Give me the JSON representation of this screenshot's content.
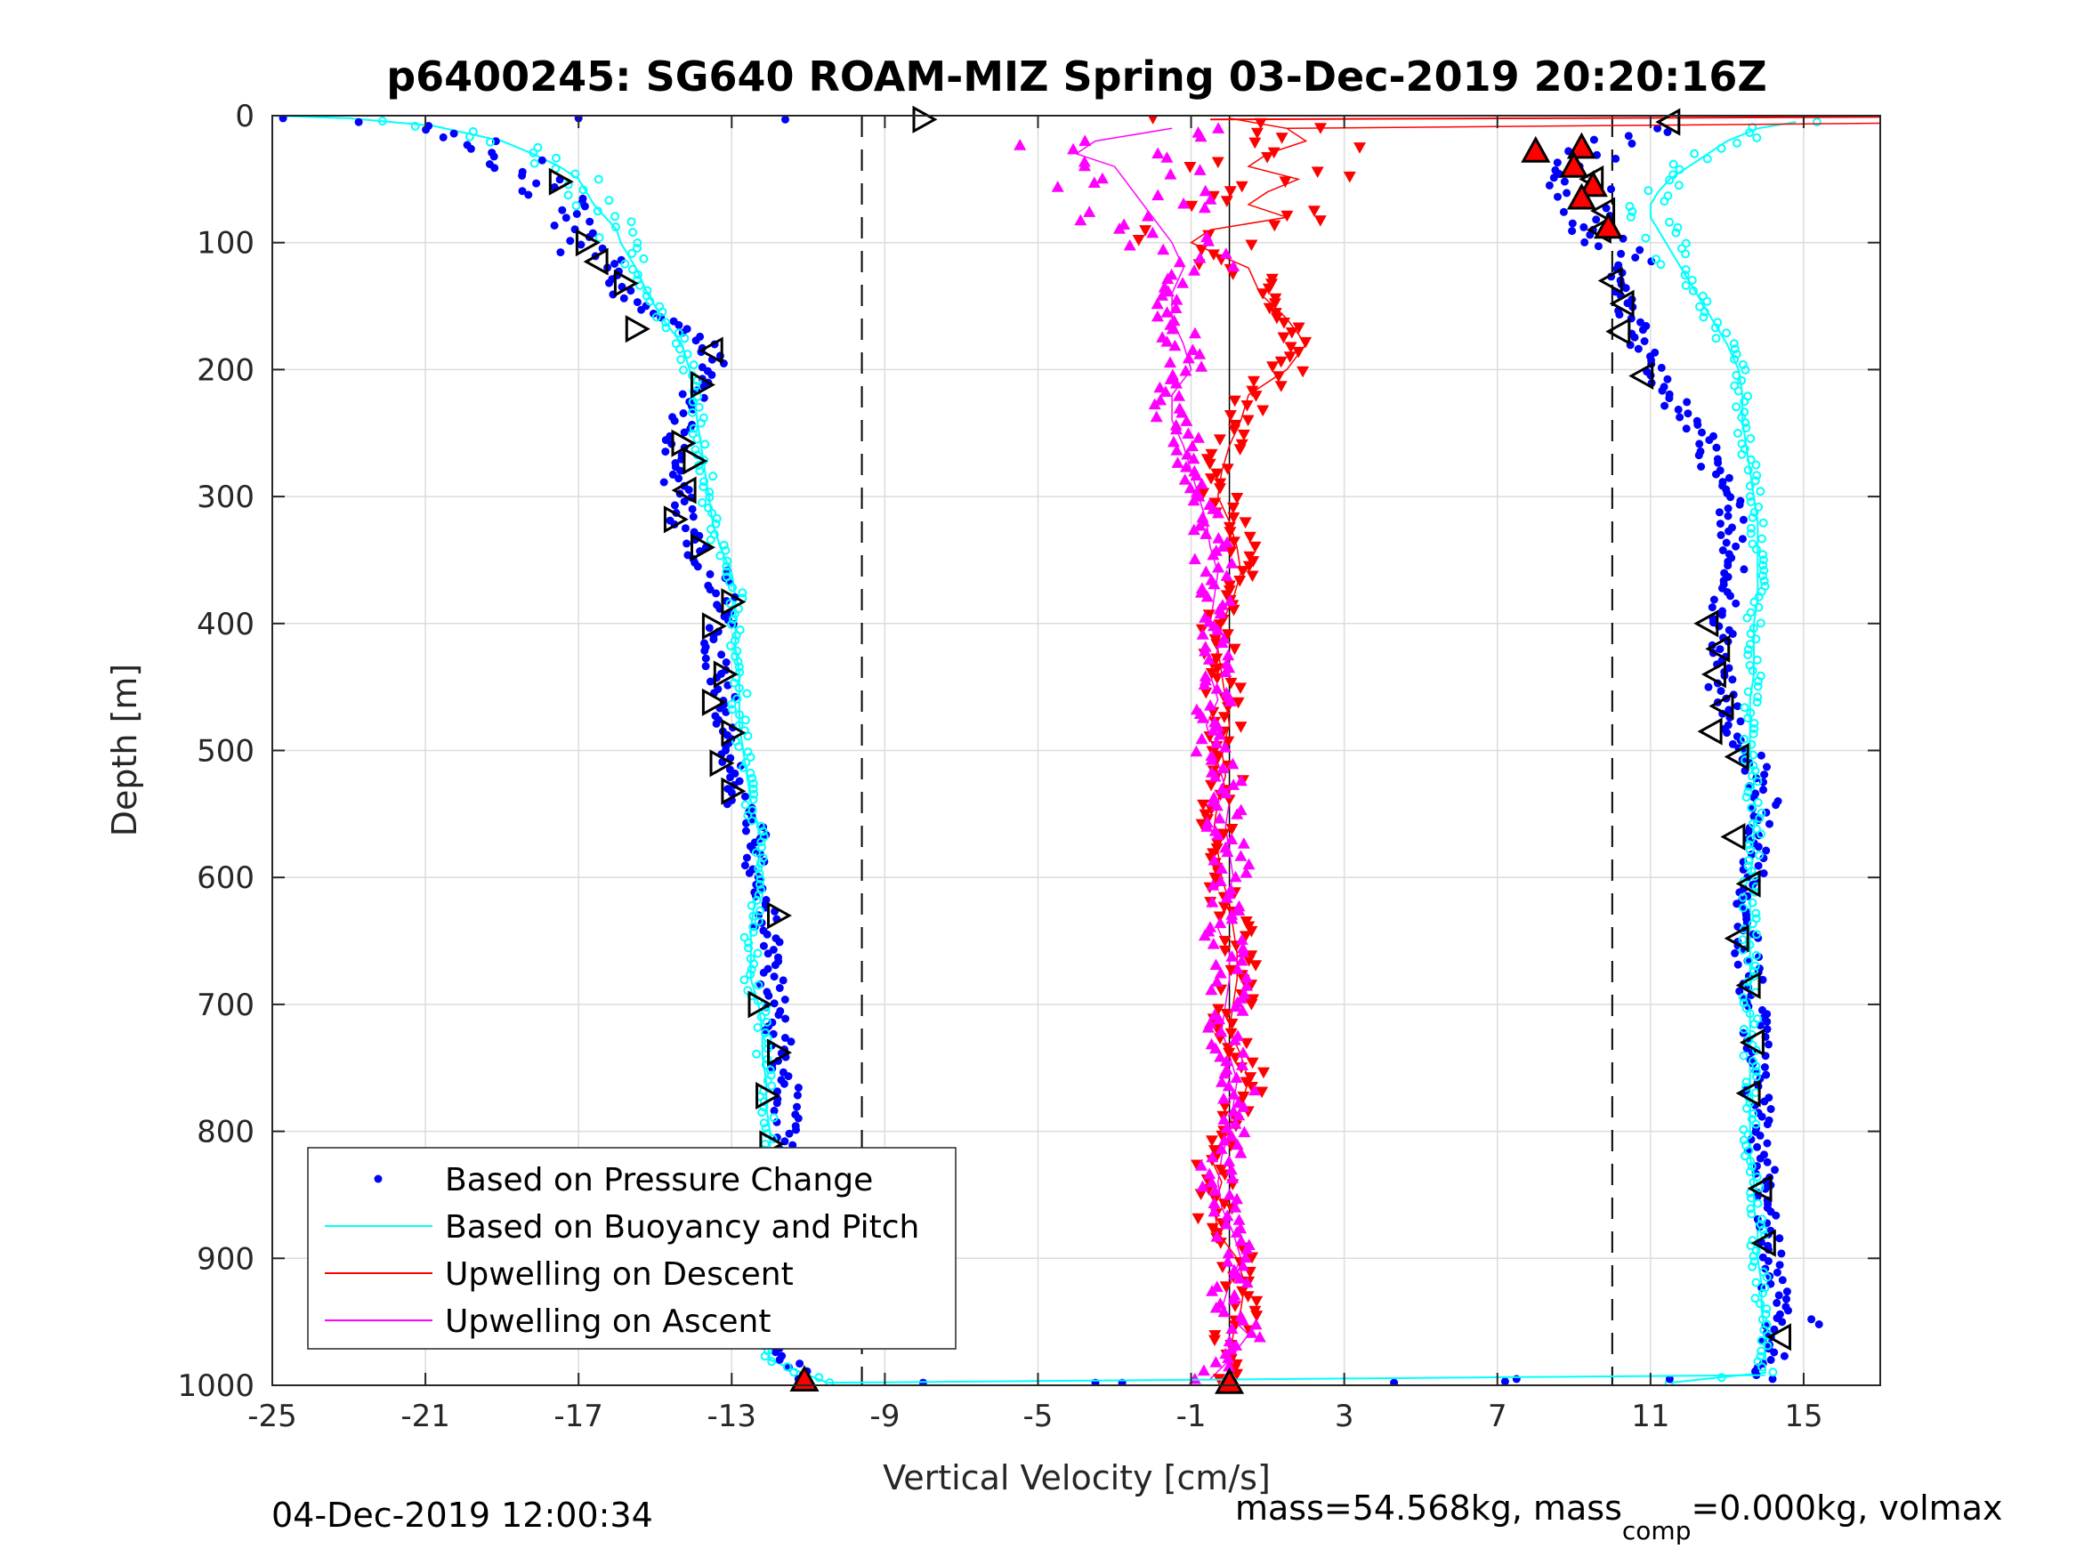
{
  "chart_data": {
    "type": "scatter",
    "title": "p6400245: SG640 ROAM-MIZ Spring 03-Dec-2019 20:20:16Z",
    "xlabel": "Vertical Velocity [cm/s]",
    "ylabel": "Depth [m]",
    "xlim": [
      -25,
      17
    ],
    "ylim": [
      1000,
      0
    ],
    "y_reversed": true,
    "grid": true,
    "x_ticks": [
      -25,
      -21,
      -17,
      -13,
      -9,
      -5,
      -1,
      3,
      7,
      11,
      15
    ],
    "x_tick_labels": [
      "-25",
      "-21",
      "-17",
      "-13",
      "-9",
      "-5",
      "-1",
      "3",
      "7",
      "11",
      "15"
    ],
    "y_ticks": [
      0,
      100,
      200,
      300,
      400,
      500,
      600,
      700,
      800,
      900,
      1000
    ],
    "y_tick_labels": [
      "0",
      "100",
      "200",
      "300",
      "400",
      "500",
      "600",
      "700",
      "800",
      "900",
      "1000"
    ],
    "reference_lines": [
      {
        "x": -9.6,
        "style": "dashed",
        "color": "#000000"
      },
      {
        "x": 10.0,
        "style": "dashed",
        "color": "#000000"
      },
      {
        "x": 0.0,
        "style": "solid",
        "color": "#000000"
      }
    ],
    "legend": {
      "position": "bottom-left",
      "entries": [
        {
          "label": "Based on Pressure Change",
          "color": "#0000ff",
          "marker": "dot"
        },
        {
          "label": "Based on Buoyancy and Pitch",
          "color": "#00ffff",
          "marker": "line"
        },
        {
          "label": "Upwelling on Descent",
          "color": "#ff0000",
          "marker": "line"
        },
        {
          "label": "Upwelling on Ascent",
          "color": "#ff00ff",
          "marker": "line"
        }
      ]
    },
    "series": [
      {
        "name": "Based on Pressure Change",
        "color": "#0000ff",
        "descent": {
          "depth": [
            2,
            10,
            20,
            30,
            40,
            50,
            60,
            70,
            80,
            90,
            100,
            110,
            120,
            140,
            160,
            180,
            190,
            200,
            220,
            240,
            260,
            280,
            300,
            320,
            340,
            360,
            380,
            400,
            420,
            440,
            460,
            480,
            500,
            520,
            540,
            560,
            580,
            600,
            620,
            640,
            660,
            680,
            700,
            720,
            740,
            760,
            780,
            800,
            820,
            840,
            860,
            880,
            900,
            920,
            940,
            960,
            980,
            995
          ],
          "v": [
            -24.7,
            -20.5,
            -19.5,
            -18.8,
            -18.5,
            -18.0,
            -17.8,
            -17.5,
            -17.2,
            -17.0,
            -16.8,
            -16.6,
            -16.3,
            -15.8,
            -15.0,
            -13.6,
            -13.4,
            -13.7,
            -14.0,
            -14.3,
            -14.4,
            -14.5,
            -14.4,
            -14.3,
            -14.0,
            -13.4,
            -13.2,
            -13.3,
            -13.4,
            -13.3,
            -13.2,
            -13.1,
            -13.0,
            -13.0,
            -12.9,
            -12.3,
            -12.3,
            -12.3,
            -12.1,
            -12.1,
            -12.0,
            -12.0,
            -11.9,
            -11.8,
            -11.7,
            -11.6,
            -11.6,
            -11.5,
            -11.5,
            -11.5,
            -11.4,
            -11.4,
            -11.4,
            -11.5,
            -11.6,
            -11.6,
            -11.5,
            -11.2
          ]
        },
        "ascent": {
          "depth": [
            995,
            980,
            960,
            940,
            920,
            900,
            880,
            860,
            840,
            820,
            800,
            780,
            760,
            740,
            720,
            700,
            680,
            660,
            640,
            620,
            600,
            580,
            560,
            540,
            520,
            500,
            480,
            460,
            440,
            420,
            400,
            380,
            360,
            340,
            320,
            300,
            280,
            260,
            240,
            220,
            200,
            180,
            160,
            140,
            120,
            100,
            90,
            80,
            70,
            60,
            50,
            40,
            30,
            20,
            10
          ],
          "v": [
            14.0,
            14.2,
            14.2,
            14.3,
            14.2,
            14.1,
            14.0,
            14.0,
            13.9,
            13.9,
            13.8,
            13.8,
            13.8,
            13.8,
            13.7,
            13.7,
            13.6,
            13.5,
            13.6,
            13.6,
            13.6,
            13.7,
            13.8,
            14.0,
            13.8,
            13.6,
            13.2,
            12.9,
            12.8,
            12.8,
            12.9,
            13.0,
            13.2,
            13.2,
            13.1,
            13.0,
            12.7,
            12.5,
            12.0,
            11.5,
            11.2,
            10.8,
            10.5,
            10.3,
            10.2,
            10.1,
            9.8,
            9.6,
            9.5,
            9.3,
            9.2,
            9.4,
            9.5,
            10.0,
            11.5
          ]
        }
      },
      {
        "name": "Based on Buoyancy and Pitch",
        "color": "#00ffff",
        "descent": {
          "depth": [
            0,
            2,
            8,
            20,
            30,
            40,
            50,
            60,
            70,
            80,
            90,
            100,
            110,
            120,
            140,
            160,
            180,
            200,
            220,
            240,
            260,
            280,
            300,
            320,
            340,
            360,
            380,
            400,
            420,
            440,
            460,
            480,
            500,
            520,
            540,
            560,
            580,
            600,
            620,
            640,
            660,
            680,
            700,
            720,
            740,
            760,
            780,
            800,
            820,
            840,
            860,
            880,
            900,
            920,
            940,
            960,
            980,
            998
          ],
          "v": [
            -25.0,
            -23.0,
            -20.8,
            -19.0,
            -18.2,
            -17.5,
            -17.0,
            -16.8,
            -16.6,
            -16.3,
            -16.0,
            -15.9,
            -15.7,
            -15.5,
            -15.2,
            -14.8,
            -14.3,
            -14.1,
            -14.0,
            -13.9,
            -13.8,
            -13.7,
            -13.6,
            -13.5,
            -13.3,
            -13.0,
            -12.9,
            -12.9,
            -12.9,
            -12.8,
            -12.8,
            -12.8,
            -12.7,
            -12.6,
            -12.5,
            -12.3,
            -12.3,
            -12.3,
            -12.4,
            -12.5,
            -12.5,
            -12.5,
            -12.3,
            -12.2,
            -12.2,
            -12.1,
            -12.1,
            -12.0,
            -12.0,
            -12.1,
            -12.2,
            -12.2,
            -12.2,
            -12.2,
            -12.1,
            -12.1,
            -12.0,
            -10.5
          ]
        },
        "ascent": {
          "depth": [
            998,
            990,
            980,
            960,
            940,
            920,
            900,
            880,
            860,
            840,
            820,
            800,
            780,
            760,
            740,
            720,
            700,
            680,
            660,
            640,
            620,
            600,
            580,
            560,
            540,
            520,
            500,
            480,
            460,
            440,
            420,
            400,
            380,
            360,
            340,
            320,
            300,
            280,
            260,
            240,
            220,
            200,
            180,
            160,
            140,
            120,
            110,
            100,
            90,
            80,
            70,
            60,
            50,
            40,
            30,
            20,
            10,
            5
          ],
          "v": [
            11.5,
            14.0,
            14.0,
            14.0,
            13.9,
            13.9,
            13.8,
            13.8,
            13.7,
            13.7,
            13.6,
            13.6,
            13.6,
            13.6,
            13.6,
            13.6,
            13.6,
            13.6,
            13.6,
            13.6,
            13.6,
            13.6,
            13.7,
            13.7,
            13.7,
            13.7,
            13.6,
            13.6,
            13.6,
            13.7,
            13.7,
            13.7,
            13.8,
            13.8,
            13.8,
            13.8,
            13.7,
            13.6,
            13.5,
            13.4,
            13.4,
            13.3,
            13.0,
            12.6,
            12.2,
            11.8,
            11.6,
            11.4,
            11.2,
            11.0,
            11.0,
            11.2,
            11.5,
            12.0,
            12.5,
            13.0,
            13.8,
            14.8
          ]
        }
      },
      {
        "name": "Upwelling on Descent",
        "color": "#ff0000",
        "depth": [
          2,
          10,
          20,
          30,
          40,
          50,
          60,
          70,
          80,
          90,
          100,
          120,
          140,
          160,
          180,
          200,
          220,
          240,
          260,
          280,
          300,
          320,
          340,
          360,
          380,
          400,
          420,
          440,
          460,
          480,
          500,
          520,
          540,
          560,
          580,
          600,
          620,
          640,
          660,
          680,
          700,
          720,
          740,
          760,
          780,
          800,
          820,
          840,
          860,
          880,
          900,
          920,
          940,
          960,
          980,
          995
        ],
        "v": [
          0.0,
          1.5,
          2.0,
          1.0,
          0.5,
          1.8,
          1.0,
          0.5,
          1.5,
          -0.5,
          -1.0,
          0.5,
          0.8,
          1.5,
          2.0,
          1.5,
          0.5,
          0.3,
          0.0,
          -0.2,
          -0.3,
          0.0,
          0.2,
          0.3,
          0.1,
          -0.2,
          -0.3,
          -0.2,
          -0.1,
          0.0,
          -0.2,
          -0.1,
          -0.3,
          -0.4,
          -0.3,
          -0.2,
          0.0,
          0.1,
          0.2,
          0.2,
          0.1,
          0.0,
          0.3,
          0.5,
          0.3,
          0.0,
          -0.5,
          -0.2,
          -0.4,
          -0.3,
          0.2,
          0.4,
          0.3,
          0.1,
          0.0,
          0.1
        ]
      },
      {
        "name": "Upwelling on Ascent",
        "color": "#ff00ff",
        "depth": [
          995,
          980,
          960,
          940,
          920,
          900,
          880,
          860,
          840,
          820,
          800,
          780,
          760,
          740,
          720,
          700,
          680,
          660,
          640,
          620,
          600,
          580,
          560,
          540,
          520,
          500,
          480,
          460,
          440,
          420,
          400,
          380,
          360,
          340,
          320,
          300,
          280,
          260,
          240,
          220,
          200,
          180,
          160,
          140,
          120,
          100,
          80,
          60,
          40,
          30,
          20,
          10
        ],
        "v": [
          -0.5,
          0.0,
          0.5,
          -0.2,
          0.0,
          0.3,
          0.1,
          -0.2,
          -0.3,
          -0.2,
          0.0,
          0.1,
          0.2,
          0.0,
          -0.2,
          -0.1,
          0.0,
          0.0,
          -0.3,
          -0.1,
          0.1,
          0.0,
          -0.1,
          0.0,
          -0.2,
          -0.4,
          -0.6,
          -0.3,
          -0.5,
          -0.3,
          -0.5,
          -0.4,
          -0.3,
          -0.5,
          -0.6,
          -0.8,
          -1.0,
          -1.2,
          -1.5,
          -1.5,
          -1.0,
          -1.2,
          -1.5,
          -1.5,
          -1.2,
          -1.5,
          -2.0,
          -2.5,
          -3.0,
          -4.0,
          -3.5,
          -1.5
        ]
      }
    ],
    "markers": {
      "open_triangle_markers": [
        {
          "v": -8.0,
          "depth": 3
        },
        {
          "v": 11.5,
          "depth": 5
        },
        {
          "v": -17.5,
          "depth": 52
        },
        {
          "v": -16.8,
          "depth": 100
        },
        {
          "v": -16.5,
          "depth": 115
        },
        {
          "v": -15.8,
          "depth": 132
        },
        {
          "v": -15.5,
          "depth": 168
        },
        {
          "v": -13.5,
          "depth": 185
        },
        {
          "v": -13.8,
          "depth": 212
        },
        {
          "v": -14.3,
          "depth": 258
        },
        {
          "v": -14.0,
          "depth": 272
        },
        {
          "v": -14.2,
          "depth": 295
        },
        {
          "v": -14.5,
          "depth": 318
        },
        {
          "v": -13.8,
          "depth": 340
        },
        {
          "v": -13.0,
          "depth": 383
        },
        {
          "v": -13.5,
          "depth": 402
        },
        {
          "v": -13.2,
          "depth": 440
        },
        {
          "v": -13.5,
          "depth": 462
        },
        {
          "v": -13.0,
          "depth": 486
        },
        {
          "v": -13.3,
          "depth": 510
        },
        {
          "v": -13.0,
          "depth": 532
        },
        {
          "v": -11.8,
          "depth": 630
        },
        {
          "v": -12.3,
          "depth": 700
        },
        {
          "v": -11.8,
          "depth": 738
        },
        {
          "v": -12.1,
          "depth": 772
        },
        {
          "v": -12.0,
          "depth": 810
        },
        {
          "v": -11.5,
          "depth": 842
        },
        {
          "v": 9.5,
          "depth": 50
        },
        {
          "v": 9.8,
          "depth": 75
        },
        {
          "v": 9.7,
          "depth": 90
        },
        {
          "v": 10.0,
          "depth": 130
        },
        {
          "v": 10.3,
          "depth": 148
        },
        {
          "v": 10.2,
          "depth": 170
        },
        {
          "v": 10.8,
          "depth": 205
        },
        {
          "v": 12.5,
          "depth": 400
        },
        {
          "v": 12.8,
          "depth": 420
        },
        {
          "v": 12.7,
          "depth": 440
        },
        {
          "v": 12.9,
          "depth": 465
        },
        {
          "v": 12.6,
          "depth": 485
        },
        {
          "v": 13.3,
          "depth": 505
        },
        {
          "v": 13.2,
          "depth": 568
        },
        {
          "v": 13.6,
          "depth": 605
        },
        {
          "v": 13.3,
          "depth": 648
        },
        {
          "v": 13.6,
          "depth": 685
        },
        {
          "v": 13.7,
          "depth": 730
        },
        {
          "v": 13.6,
          "depth": 770
        },
        {
          "v": 13.9,
          "depth": 845
        },
        {
          "v": 14.0,
          "depth": 888
        },
        {
          "v": 14.4,
          "depth": 962
        }
      ],
      "filled_red_triangle_markers": [
        {
          "v": -11.1,
          "depth": 996
        },
        {
          "v": 0.0,
          "depth": 998
        },
        {
          "v": 8.0,
          "depth": 28
        },
        {
          "v": 9.2,
          "depth": 25
        },
        {
          "v": 9.0,
          "depth": 40
        },
        {
          "v": 9.5,
          "depth": 55
        },
        {
          "v": 9.2,
          "depth": 65
        },
        {
          "v": 9.9,
          "depth": 88
        }
      ]
    }
  },
  "footer": {
    "timestamp": "04-Dec-2019 12:00:34",
    "mass_text_1": "mass=54.568kg, mass",
    "mass_subscript": "comp",
    "mass_text_2": "=0.000kg, volmax"
  }
}
